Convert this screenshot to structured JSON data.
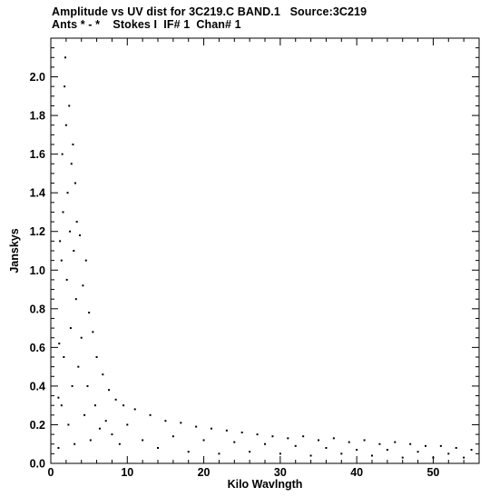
{
  "header": {
    "line1": "Amplitude vs UV dist for 3C219.C BAND.1   Source:3C219",
    "line2": "Ants * - *    Stokes I  IF# 1  Chan# 1"
  },
  "chart_data": {
    "type": "scatter",
    "xlabel": "Kilo Wavlngth",
    "ylabel": "Janskys",
    "xlim": [
      0,
      56
    ],
    "ylim": [
      0,
      2.2
    ],
    "x_ticks": [
      "0",
      "10",
      "20",
      "30",
      "40",
      "50"
    ],
    "y_ticks": [
      "0.0",
      "0.2",
      "0.4",
      "0.6",
      "0.8",
      "1.0",
      "1.2",
      "1.4",
      "1.6",
      "1.8",
      "2.0"
    ],
    "grid": false,
    "marker_color": "#000000",
    "series": [
      {
        "points": [
          [
            1.0,
            0.08
          ],
          [
            1.0,
            0.34
          ],
          [
            1.1,
            0.62
          ],
          [
            1.2,
            1.15
          ],
          [
            1.4,
            0.3
          ],
          [
            1.4,
            1.05
          ],
          [
            1.5,
            1.6
          ],
          [
            1.6,
            1.3
          ],
          [
            1.7,
            0.55
          ],
          [
            1.8,
            1.95
          ],
          [
            1.9,
            2.1
          ],
          [
            2.0,
            1.75
          ],
          [
            2.1,
            0.95
          ],
          [
            2.2,
            1.4
          ],
          [
            2.3,
            0.2
          ],
          [
            2.4,
            1.85
          ],
          [
            2.5,
            1.2
          ],
          [
            2.6,
            0.7
          ],
          [
            2.7,
            1.55
          ],
          [
            2.8,
            0.4
          ],
          [
            2.9,
            1.65
          ],
          [
            3.0,
            1.1
          ],
          [
            3.1,
            0.1
          ],
          [
            3.2,
            1.45
          ],
          [
            3.3,
            0.85
          ],
          [
            3.4,
            1.25
          ],
          [
            3.6,
            0.5
          ],
          [
            3.8,
            1.18
          ],
          [
            4.0,
            0.65
          ],
          [
            4.2,
            0.92
          ],
          [
            4.4,
            0.25
          ],
          [
            4.6,
            1.05
          ],
          [
            4.8,
            0.4
          ],
          [
            5.0,
            0.78
          ],
          [
            5.2,
            0.12
          ],
          [
            5.5,
            0.68
          ],
          [
            5.8,
            0.3
          ],
          [
            6.0,
            0.55
          ],
          [
            6.4,
            0.18
          ],
          [
            6.8,
            0.46
          ],
          [
            7.2,
            0.22
          ],
          [
            7.6,
            0.38
          ],
          [
            8.0,
            0.15
          ],
          [
            8.5,
            0.33
          ],
          [
            9.0,
            0.1
          ],
          [
            9.5,
            0.3
          ],
          [
            10.0,
            0.2
          ],
          [
            11.0,
            0.28
          ],
          [
            12.0,
            0.12
          ],
          [
            13.0,
            0.25
          ],
          [
            14.0,
            0.08
          ],
          [
            15.0,
            0.22
          ],
          [
            16.0,
            0.14
          ],
          [
            17.0,
            0.21
          ],
          [
            18.0,
            0.06
          ],
          [
            19.0,
            0.19
          ],
          [
            20.0,
            0.12
          ],
          [
            21.0,
            0.18
          ],
          [
            22.0,
            0.05
          ],
          [
            23.0,
            0.17
          ],
          [
            24.0,
            0.11
          ],
          [
            25.0,
            0.16
          ],
          [
            26.0,
            0.06
          ],
          [
            27.0,
            0.15
          ],
          [
            28.0,
            0.1
          ],
          [
            29.0,
            0.14
          ],
          [
            30.0,
            0.05
          ],
          [
            31.0,
            0.13
          ],
          [
            32.0,
            0.09
          ],
          [
            33.0,
            0.14
          ],
          [
            34.0,
            0.04
          ],
          [
            35.0,
            0.12
          ],
          [
            36.0,
            0.08
          ],
          [
            37.0,
            0.13
          ],
          [
            38.0,
            0.05
          ],
          [
            39.0,
            0.11
          ],
          [
            40.0,
            0.07
          ],
          [
            41.0,
            0.12
          ],
          [
            42.0,
            0.04
          ],
          [
            43.0,
            0.1
          ],
          [
            44.0,
            0.07
          ],
          [
            45.0,
            0.11
          ],
          [
            46.0,
            0.03
          ],
          [
            47.0,
            0.1
          ],
          [
            48.0,
            0.06
          ],
          [
            49.0,
            0.09
          ],
          [
            50.0,
            0.03
          ],
          [
            51.0,
            0.09
          ],
          [
            52.0,
            0.05
          ],
          [
            53.0,
            0.08
          ],
          [
            54.0,
            0.03
          ],
          [
            55.0,
            0.07
          ]
        ]
      }
    ]
  }
}
